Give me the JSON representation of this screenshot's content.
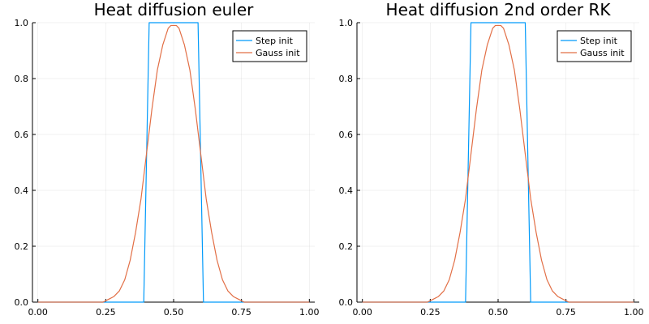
{
  "chart_data": [
    {
      "type": "line",
      "title": "Heat diffusion euler",
      "xlabel": "",
      "ylabel": "",
      "xlim": [
        -0.02,
        1.02
      ],
      "ylim": [
        0,
        1
      ],
      "xticks": [
        0.0,
        0.25,
        0.5,
        0.75,
        1.0
      ],
      "xtick_labels": [
        "0.00",
        "0.25",
        "0.50",
        "0.75",
        "1.00"
      ],
      "yticks": [
        0.0,
        0.2,
        0.4,
        0.6,
        0.8,
        1.0
      ],
      "ytick_labels": [
        "0.0",
        "0.2",
        "0.4",
        "0.6",
        "0.8",
        "1.0"
      ],
      "grid": true,
      "legend_position": "top-right",
      "series": [
        {
          "name": "Step init",
          "color": "#009AFA",
          "x": [
            0.0,
            0.39,
            0.41,
            0.59,
            0.61,
            1.0
          ],
          "y": [
            0.0,
            0.0,
            1.0,
            1.0,
            0.0,
            0.0
          ]
        },
        {
          "name": "Gauss init",
          "color": "#E26F46",
          "x": [
            0.0,
            0.24,
            0.26,
            0.28,
            0.3,
            0.32,
            0.34,
            0.36,
            0.38,
            0.4,
            0.42,
            0.44,
            0.46,
            0.48,
            0.49,
            0.51,
            0.52,
            0.54,
            0.56,
            0.58,
            0.6,
            0.62,
            0.64,
            0.66,
            0.68,
            0.7,
            0.72,
            0.74,
            0.76,
            1.0
          ],
          "y": [
            0.0,
            0.0,
            0.01,
            0.02,
            0.04,
            0.08,
            0.15,
            0.25,
            0.37,
            0.53,
            0.69,
            0.83,
            0.92,
            0.98,
            0.99,
            0.99,
            0.98,
            0.92,
            0.83,
            0.69,
            0.53,
            0.37,
            0.25,
            0.15,
            0.08,
            0.04,
            0.02,
            0.01,
            0.0,
            0.0
          ]
        }
      ]
    },
    {
      "type": "line",
      "title": "Heat diffusion 2nd order RK",
      "xlabel": "",
      "ylabel": "",
      "xlim": [
        -0.02,
        1.02
      ],
      "ylim": [
        0,
        1
      ],
      "xticks": [
        0.0,
        0.25,
        0.5,
        0.75,
        1.0
      ],
      "xtick_labels": [
        "0.00",
        "0.25",
        "0.50",
        "0.75",
        "1.00"
      ],
      "yticks": [
        0.0,
        0.2,
        0.4,
        0.6,
        0.8,
        1.0
      ],
      "ytick_labels": [
        "0.0",
        "0.2",
        "0.4",
        "0.6",
        "0.8",
        "1.0"
      ],
      "grid": true,
      "legend_position": "top-right",
      "series": [
        {
          "name": "Step init",
          "color": "#009AFA",
          "x": [
            0.0,
            0.38,
            0.4,
            0.6,
            0.62,
            1.0
          ],
          "y": [
            0.0,
            0.0,
            1.0,
            1.0,
            0.0,
            0.0
          ]
        },
        {
          "name": "Gauss init",
          "color": "#E26F46",
          "x": [
            0.0,
            0.24,
            0.26,
            0.28,
            0.3,
            0.32,
            0.34,
            0.36,
            0.38,
            0.4,
            0.42,
            0.44,
            0.46,
            0.48,
            0.49,
            0.51,
            0.52,
            0.54,
            0.56,
            0.58,
            0.6,
            0.62,
            0.64,
            0.66,
            0.68,
            0.7,
            0.72,
            0.74,
            0.76,
            1.0
          ],
          "y": [
            0.0,
            0.0,
            0.01,
            0.02,
            0.04,
            0.08,
            0.15,
            0.25,
            0.37,
            0.53,
            0.69,
            0.83,
            0.92,
            0.98,
            0.99,
            0.99,
            0.98,
            0.92,
            0.83,
            0.69,
            0.53,
            0.37,
            0.25,
            0.15,
            0.08,
            0.04,
            0.02,
            0.01,
            0.0,
            0.0
          ]
        }
      ]
    }
  ]
}
